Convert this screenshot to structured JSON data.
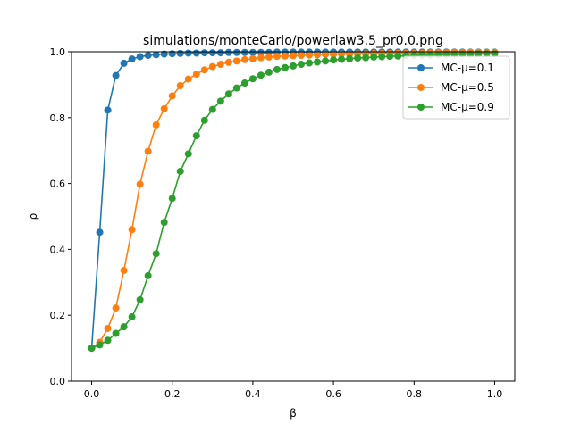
{
  "chart_data": {
    "type": "line",
    "title": "simulations/monteCarlo/powerlaw3.5_pr0.0.png",
    "xlabel": "β",
    "ylabel": "ρ",
    "xlim": [
      -0.05,
      1.05
    ],
    "ylim": [
      0.0,
      1.0
    ],
    "xticks": [
      "0.0",
      "0.2",
      "0.4",
      "0.6",
      "0.8",
      "1.0"
    ],
    "yticks": [
      "0.0",
      "0.2",
      "0.4",
      "0.6",
      "0.8",
      "1.0"
    ],
    "grid": false,
    "legend_position": "upper-right",
    "x": [
      0.0,
      0.02,
      0.04,
      0.06,
      0.08,
      0.1,
      0.12,
      0.14,
      0.16,
      0.18,
      0.2,
      0.22,
      0.24,
      0.26,
      0.28,
      0.3,
      0.32,
      0.34,
      0.36,
      0.38,
      0.4,
      0.42,
      0.44,
      0.46,
      0.48,
      0.5,
      0.52,
      0.54,
      0.56,
      0.58,
      0.6,
      0.62,
      0.64,
      0.66,
      0.68,
      0.7,
      0.72,
      0.74,
      0.76,
      0.78,
      0.8,
      0.82,
      0.84,
      0.86,
      0.88,
      0.9,
      0.92,
      0.94,
      0.96,
      0.98,
      1.0
    ],
    "series": [
      {
        "name": "MC-μ=0.1",
        "color": "#1f77b4",
        "values": [
          0.1,
          0.452,
          0.823,
          0.928,
          0.965,
          0.978,
          0.985,
          0.989,
          0.991,
          0.993,
          0.994,
          0.995,
          0.996,
          0.996,
          0.997,
          0.997,
          0.997,
          0.998,
          0.998,
          0.998,
          0.998,
          0.998,
          0.998,
          0.999,
          0.999,
          0.999,
          0.999,
          0.999,
          0.999,
          0.999,
          0.999,
          0.999,
          0.999,
          0.999,
          0.999,
          0.999,
          0.999,
          0.999,
          0.999,
          0.999,
          0.999,
          0.999,
          0.999,
          0.999,
          0.999,
          0.999,
          0.999,
          0.999,
          0.999,
          0.999,
          0.999
        ]
      },
      {
        "name": "MC-μ=0.5",
        "color": "#ff7f0e",
        "values": [
          0.1,
          0.118,
          0.16,
          0.222,
          0.336,
          0.46,
          0.598,
          0.698,
          0.778,
          0.827,
          0.866,
          0.897,
          0.917,
          0.932,
          0.945,
          0.955,
          0.962,
          0.968,
          0.972,
          0.976,
          0.979,
          0.982,
          0.984,
          0.986,
          0.987,
          0.988,
          0.989,
          0.99,
          0.991,
          0.992,
          0.992,
          0.993,
          0.993,
          0.994,
          0.994,
          0.995,
          0.995,
          0.995,
          0.996,
          0.996,
          0.996,
          0.996,
          0.997,
          0.997,
          0.997,
          0.997,
          0.997,
          0.998,
          0.998,
          0.998,
          0.998
        ]
      },
      {
        "name": "MC-μ=0.9",
        "color": "#2ca02c",
        "values": [
          0.1,
          0.11,
          0.124,
          0.145,
          0.165,
          0.195,
          0.247,
          0.32,
          0.387,
          0.482,
          0.555,
          0.637,
          0.69,
          0.745,
          0.792,
          0.825,
          0.85,
          0.872,
          0.89,
          0.905,
          0.918,
          0.929,
          0.938,
          0.946,
          0.952,
          0.957,
          0.962,
          0.966,
          0.969,
          0.972,
          0.975,
          0.977,
          0.979,
          0.981,
          0.982,
          0.984,
          0.985,
          0.986,
          0.987,
          0.988,
          0.989,
          0.99,
          0.99,
          0.991,
          0.992,
          0.992,
          0.993,
          0.993,
          0.994,
          0.994,
          0.994
        ]
      }
    ]
  }
}
